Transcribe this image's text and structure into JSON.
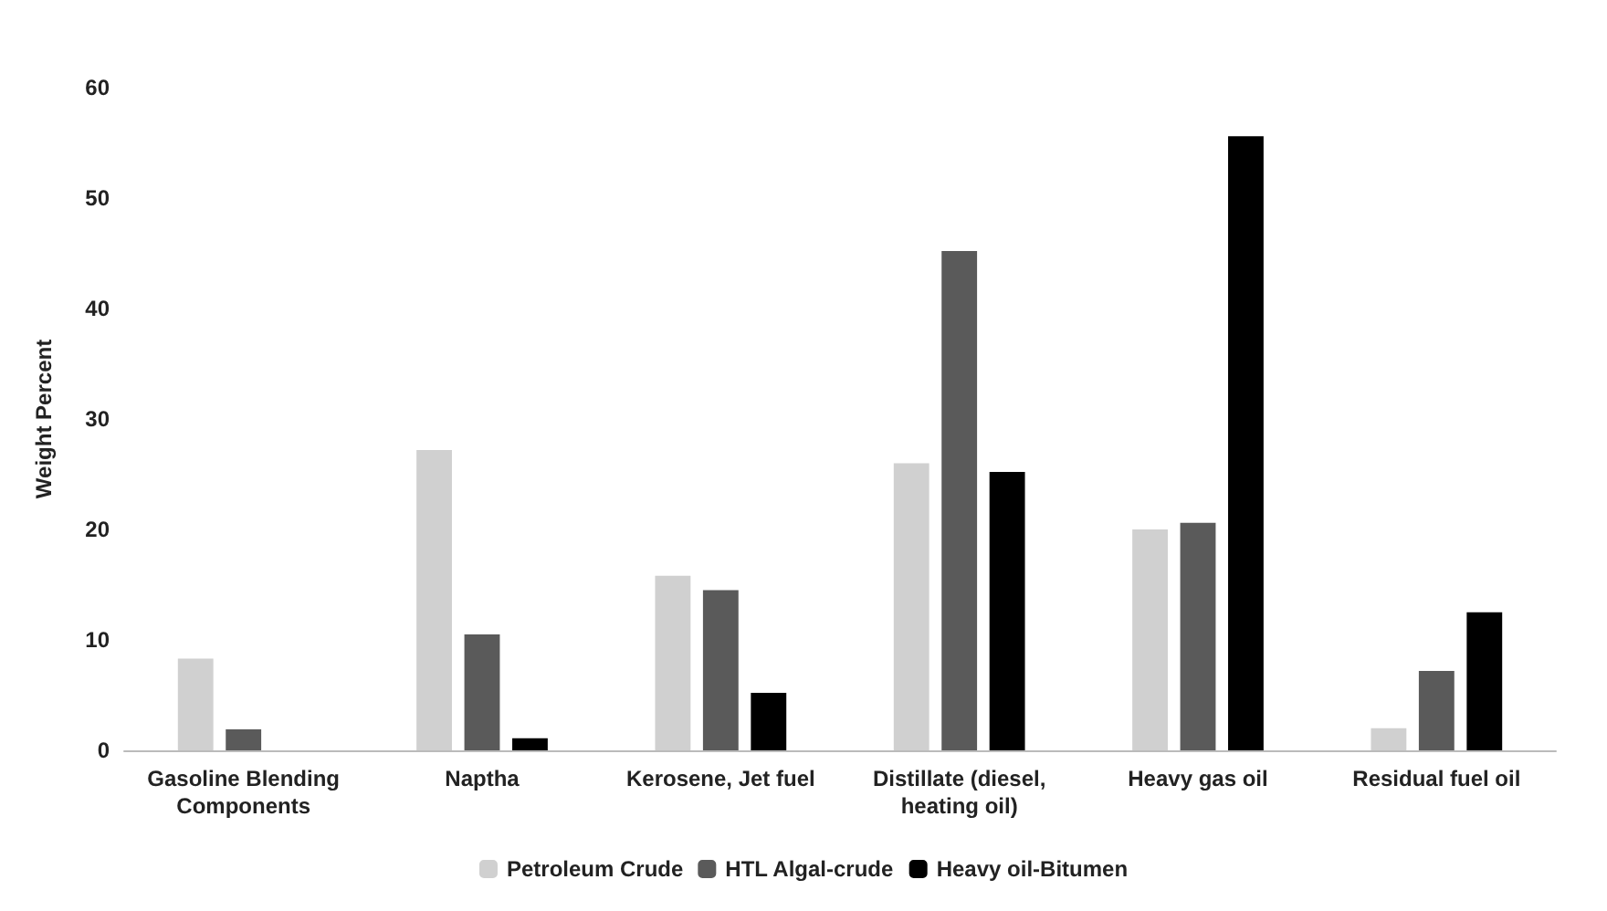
{
  "chart_data": {
    "type": "bar",
    "ylabel": "Weight Percent",
    "categories": [
      "Gasoline Blending\nComponents",
      "Naptha",
      "Kerosene, Jet fuel",
      "Distillate (diesel,\nheating oil)",
      "Heavy gas oil",
      "Residual fuel oil"
    ],
    "series": [
      {
        "name": "Petroleum Crude",
        "color": "#d0d0d0",
        "values": [
          8.3,
          27.2,
          15.8,
          26,
          20,
          2
        ]
      },
      {
        "name": "HTL Algal-crude",
        "color": "#5a5a5a",
        "values": [
          1.9,
          10.5,
          14.5,
          45.2,
          20.6,
          7.2
        ]
      },
      {
        "name": "Heavy oil-Bitumen",
        "color": "#000000",
        "values": [
          0,
          1.1,
          5.2,
          25.2,
          55.6,
          12.5
        ]
      }
    ],
    "ylim": [
      0,
      60
    ],
    "yticks": [
      0,
      10,
      20,
      30,
      40,
      50,
      60
    ],
    "grid": false,
    "legend": "bottom"
  }
}
